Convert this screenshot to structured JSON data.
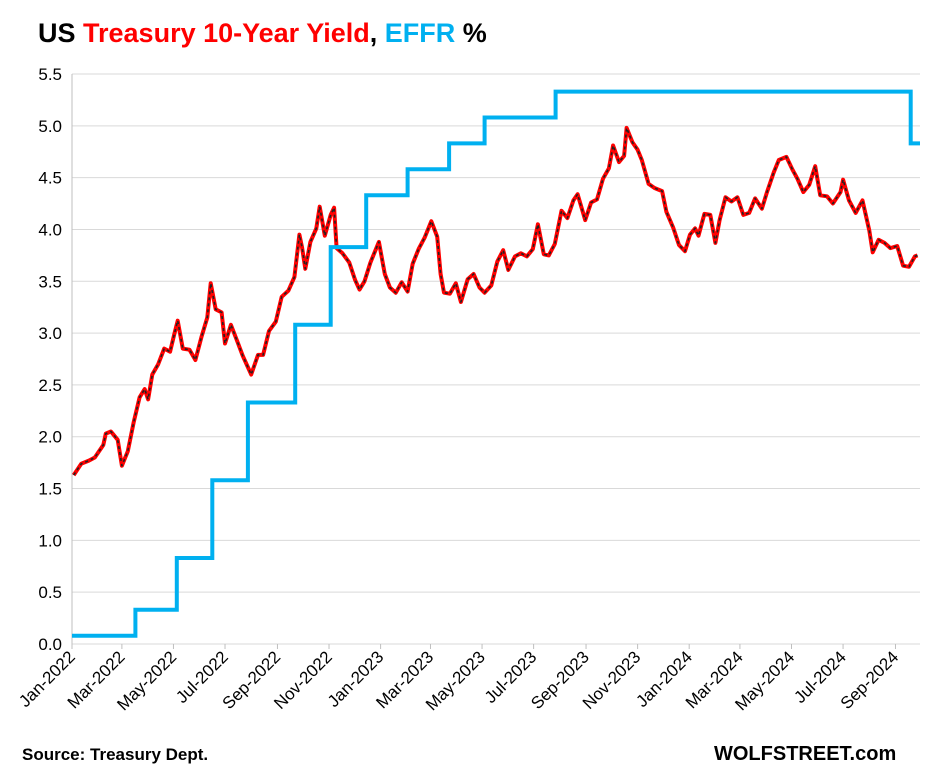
{
  "title": {
    "prefix": "US ",
    "series1": "Treasury 10-Year Yield",
    "sep": ", ",
    "series2": "EFFR",
    "suffix": " %"
  },
  "source": "Source: Treasury Dept.",
  "brand": "WOLFSTREET.com",
  "chart_data": {
    "type": "line",
    "title": "US Treasury 10-Year Yield, EFFR %",
    "xlabel": "",
    "ylabel": "",
    "ylim": [
      0.0,
      5.5
    ],
    "yticks": [
      "0.0",
      "0.5",
      "1.0",
      "1.5",
      "2.0",
      "2.5",
      "3.0",
      "3.5",
      "4.0",
      "4.5",
      "5.0",
      "5.5"
    ],
    "xlim": [
      "2022-01-01",
      "2024-09-30"
    ],
    "xticks": [
      {
        "date": "2022-01-01",
        "label": "Jan-2022"
      },
      {
        "date": "2022-03-01",
        "label": "Mar-2022"
      },
      {
        "date": "2022-05-01",
        "label": "May-2022"
      },
      {
        "date": "2022-07-01",
        "label": "Jul-2022"
      },
      {
        "date": "2022-09-01",
        "label": "Sep-2022"
      },
      {
        "date": "2022-11-01",
        "label": "Nov-2022"
      },
      {
        "date": "2023-01-01",
        "label": "Jan-2023"
      },
      {
        "date": "2023-03-01",
        "label": "Mar-2023"
      },
      {
        "date": "2023-05-01",
        "label": "May-2023"
      },
      {
        "date": "2023-07-01",
        "label": "Jul-2023"
      },
      {
        "date": "2023-09-01",
        "label": "Sep-2023"
      },
      {
        "date": "2023-11-01",
        "label": "Nov-2023"
      },
      {
        "date": "2024-01-01",
        "label": "Jan-2024"
      },
      {
        "date": "2024-03-01",
        "label": "Mar-2024"
      },
      {
        "date": "2024-05-01",
        "label": "May-2024"
      },
      {
        "date": "2024-07-01",
        "label": "Jul-2024"
      },
      {
        "date": "2024-09-01",
        "label": "Sep-2024"
      }
    ],
    "grid": true,
    "legend": "none",
    "series": [
      {
        "name": "Treasury 10-Year Yield",
        "color": "#ff0000",
        "style": "line",
        "points": [
          [
            "2022-01-03",
            1.63
          ],
          [
            "2022-01-12",
            1.74
          ],
          [
            "2022-01-21",
            1.77
          ],
          [
            "2022-01-28",
            1.8
          ],
          [
            "2022-02-07",
            1.92
          ],
          [
            "2022-02-10",
            2.03
          ],
          [
            "2022-02-16",
            2.05
          ],
          [
            "2022-02-24",
            1.97
          ],
          [
            "2022-03-01",
            1.72
          ],
          [
            "2022-03-08",
            1.86
          ],
          [
            "2022-03-15",
            2.14
          ],
          [
            "2022-03-22",
            2.38
          ],
          [
            "2022-03-28",
            2.46
          ],
          [
            "2022-04-01",
            2.36
          ],
          [
            "2022-04-06",
            2.6
          ],
          [
            "2022-04-13",
            2.7
          ],
          [
            "2022-04-20",
            2.85
          ],
          [
            "2022-04-27",
            2.82
          ],
          [
            "2022-05-02",
            2.99
          ],
          [
            "2022-05-06",
            3.12
          ],
          [
            "2022-05-12",
            2.85
          ],
          [
            "2022-05-20",
            2.84
          ],
          [
            "2022-05-27",
            2.74
          ],
          [
            "2022-06-03",
            2.96
          ],
          [
            "2022-06-10",
            3.15
          ],
          [
            "2022-06-14",
            3.48
          ],
          [
            "2022-06-20",
            3.23
          ],
          [
            "2022-06-27",
            3.2
          ],
          [
            "2022-07-01",
            2.9
          ],
          [
            "2022-07-08",
            3.08
          ],
          [
            "2022-07-15",
            2.93
          ],
          [
            "2022-07-22",
            2.78
          ],
          [
            "2022-08-01",
            2.6
          ],
          [
            "2022-08-09",
            2.79
          ],
          [
            "2022-08-15",
            2.79
          ],
          [
            "2022-08-22",
            3.02
          ],
          [
            "2022-08-30",
            3.11
          ],
          [
            "2022-09-06",
            3.35
          ],
          [
            "2022-09-14",
            3.41
          ],
          [
            "2022-09-21",
            3.54
          ],
          [
            "2022-09-27",
            3.95
          ],
          [
            "2022-09-30",
            3.83
          ],
          [
            "2022-10-04",
            3.62
          ],
          [
            "2022-10-10",
            3.88
          ],
          [
            "2022-10-17",
            4.01
          ],
          [
            "2022-10-21",
            4.22
          ],
          [
            "2022-10-27",
            3.94
          ],
          [
            "2022-11-03",
            4.14
          ],
          [
            "2022-11-07",
            4.21
          ],
          [
            "2022-11-10",
            3.82
          ],
          [
            "2022-11-17",
            3.77
          ],
          [
            "2022-11-25",
            3.68
          ],
          [
            "2022-12-02",
            3.51
          ],
          [
            "2022-12-07",
            3.42
          ],
          [
            "2022-12-13",
            3.5
          ],
          [
            "2022-12-20",
            3.68
          ],
          [
            "2022-12-30",
            3.88
          ],
          [
            "2023-01-06",
            3.57
          ],
          [
            "2023-01-12",
            3.44
          ],
          [
            "2023-01-19",
            3.39
          ],
          [
            "2023-01-26",
            3.49
          ],
          [
            "2023-02-02",
            3.4
          ],
          [
            "2023-02-08",
            3.67
          ],
          [
            "2023-02-15",
            3.81
          ],
          [
            "2023-02-22",
            3.92
          ],
          [
            "2023-03-02",
            4.08
          ],
          [
            "2023-03-09",
            3.93
          ],
          [
            "2023-03-13",
            3.57
          ],
          [
            "2023-03-17",
            3.39
          ],
          [
            "2023-03-24",
            3.38
          ],
          [
            "2023-03-31",
            3.48
          ],
          [
            "2023-04-06",
            3.3
          ],
          [
            "2023-04-14",
            3.52
          ],
          [
            "2023-04-21",
            3.57
          ],
          [
            "2023-04-28",
            3.44
          ],
          [
            "2023-05-04",
            3.39
          ],
          [
            "2023-05-12",
            3.46
          ],
          [
            "2023-05-19",
            3.69
          ],
          [
            "2023-05-26",
            3.8
          ],
          [
            "2023-06-01",
            3.61
          ],
          [
            "2023-06-09",
            3.74
          ],
          [
            "2023-06-16",
            3.77
          ],
          [
            "2023-06-23",
            3.74
          ],
          [
            "2023-06-30",
            3.81
          ],
          [
            "2023-07-06",
            4.05
          ],
          [
            "2023-07-13",
            3.76
          ],
          [
            "2023-07-19",
            3.75
          ],
          [
            "2023-07-26",
            3.86
          ],
          [
            "2023-08-03",
            4.18
          ],
          [
            "2023-08-10",
            4.11
          ],
          [
            "2023-08-17",
            4.28
          ],
          [
            "2023-08-22",
            4.34
          ],
          [
            "2023-08-31",
            4.09
          ],
          [
            "2023-09-07",
            4.26
          ],
          [
            "2023-09-14",
            4.29
          ],
          [
            "2023-09-21",
            4.49
          ],
          [
            "2023-09-28",
            4.59
          ],
          [
            "2023-10-03",
            4.81
          ],
          [
            "2023-10-10",
            4.65
          ],
          [
            "2023-10-16",
            4.71
          ],
          [
            "2023-10-19",
            4.98
          ],
          [
            "2023-10-26",
            4.84
          ],
          [
            "2023-11-01",
            4.77
          ],
          [
            "2023-11-06",
            4.67
          ],
          [
            "2023-11-14",
            4.44
          ],
          [
            "2023-11-21",
            4.4
          ],
          [
            "2023-11-30",
            4.37
          ],
          [
            "2023-12-05",
            4.17
          ],
          [
            "2023-12-13",
            4.02
          ],
          [
            "2023-12-20",
            3.85
          ],
          [
            "2023-12-27",
            3.79
          ],
          [
            "2024-01-02",
            3.95
          ],
          [
            "2024-01-08",
            4.01
          ],
          [
            "2024-01-12",
            3.94
          ],
          [
            "2024-01-19",
            4.15
          ],
          [
            "2024-01-26",
            4.14
          ],
          [
            "2024-02-01",
            3.87
          ],
          [
            "2024-02-06",
            4.09
          ],
          [
            "2024-02-13",
            4.31
          ],
          [
            "2024-02-20",
            4.27
          ],
          [
            "2024-02-27",
            4.31
          ],
          [
            "2024-03-05",
            4.14
          ],
          [
            "2024-03-12",
            4.16
          ],
          [
            "2024-03-19",
            4.3
          ],
          [
            "2024-03-27",
            4.2
          ],
          [
            "2024-04-02",
            4.36
          ],
          [
            "2024-04-10",
            4.55
          ],
          [
            "2024-04-16",
            4.67
          ],
          [
            "2024-04-25",
            4.7
          ],
          [
            "2024-05-02",
            4.58
          ],
          [
            "2024-05-08",
            4.49
          ],
          [
            "2024-05-15",
            4.36
          ],
          [
            "2024-05-22",
            4.43
          ],
          [
            "2024-05-29",
            4.61
          ],
          [
            "2024-06-04",
            4.33
          ],
          [
            "2024-06-12",
            4.32
          ],
          [
            "2024-06-19",
            4.25
          ],
          [
            "2024-06-28",
            4.36
          ],
          [
            "2024-07-01",
            4.48
          ],
          [
            "2024-07-08",
            4.28
          ],
          [
            "2024-07-16",
            4.16
          ],
          [
            "2024-07-24",
            4.28
          ],
          [
            "2024-08-01",
            3.99
          ],
          [
            "2024-08-05",
            3.78
          ],
          [
            "2024-08-12",
            3.9
          ],
          [
            "2024-08-19",
            3.87
          ],
          [
            "2024-08-26",
            3.82
          ],
          [
            "2024-09-03",
            3.84
          ],
          [
            "2024-09-10",
            3.65
          ],
          [
            "2024-09-17",
            3.64
          ],
          [
            "2024-09-24",
            3.74
          ],
          [
            "2024-09-27",
            3.75
          ]
        ]
      },
      {
        "name": "EFFR",
        "color": "#00b0f0",
        "style": "step",
        "points": [
          [
            "2022-01-01",
            0.08
          ],
          [
            "2022-03-17",
            0.33
          ],
          [
            "2022-05-05",
            0.83
          ],
          [
            "2022-06-16",
            1.58
          ],
          [
            "2022-07-28",
            2.33
          ],
          [
            "2022-09-22",
            3.08
          ],
          [
            "2022-11-03",
            3.83
          ],
          [
            "2022-12-15",
            4.33
          ],
          [
            "2023-02-02",
            4.58
          ],
          [
            "2023-03-23",
            4.83
          ],
          [
            "2023-05-04",
            5.08
          ],
          [
            "2023-07-27",
            5.33
          ],
          [
            "2024-09-19",
            4.83
          ],
          [
            "2024-09-30",
            4.83
          ]
        ]
      }
    ]
  }
}
